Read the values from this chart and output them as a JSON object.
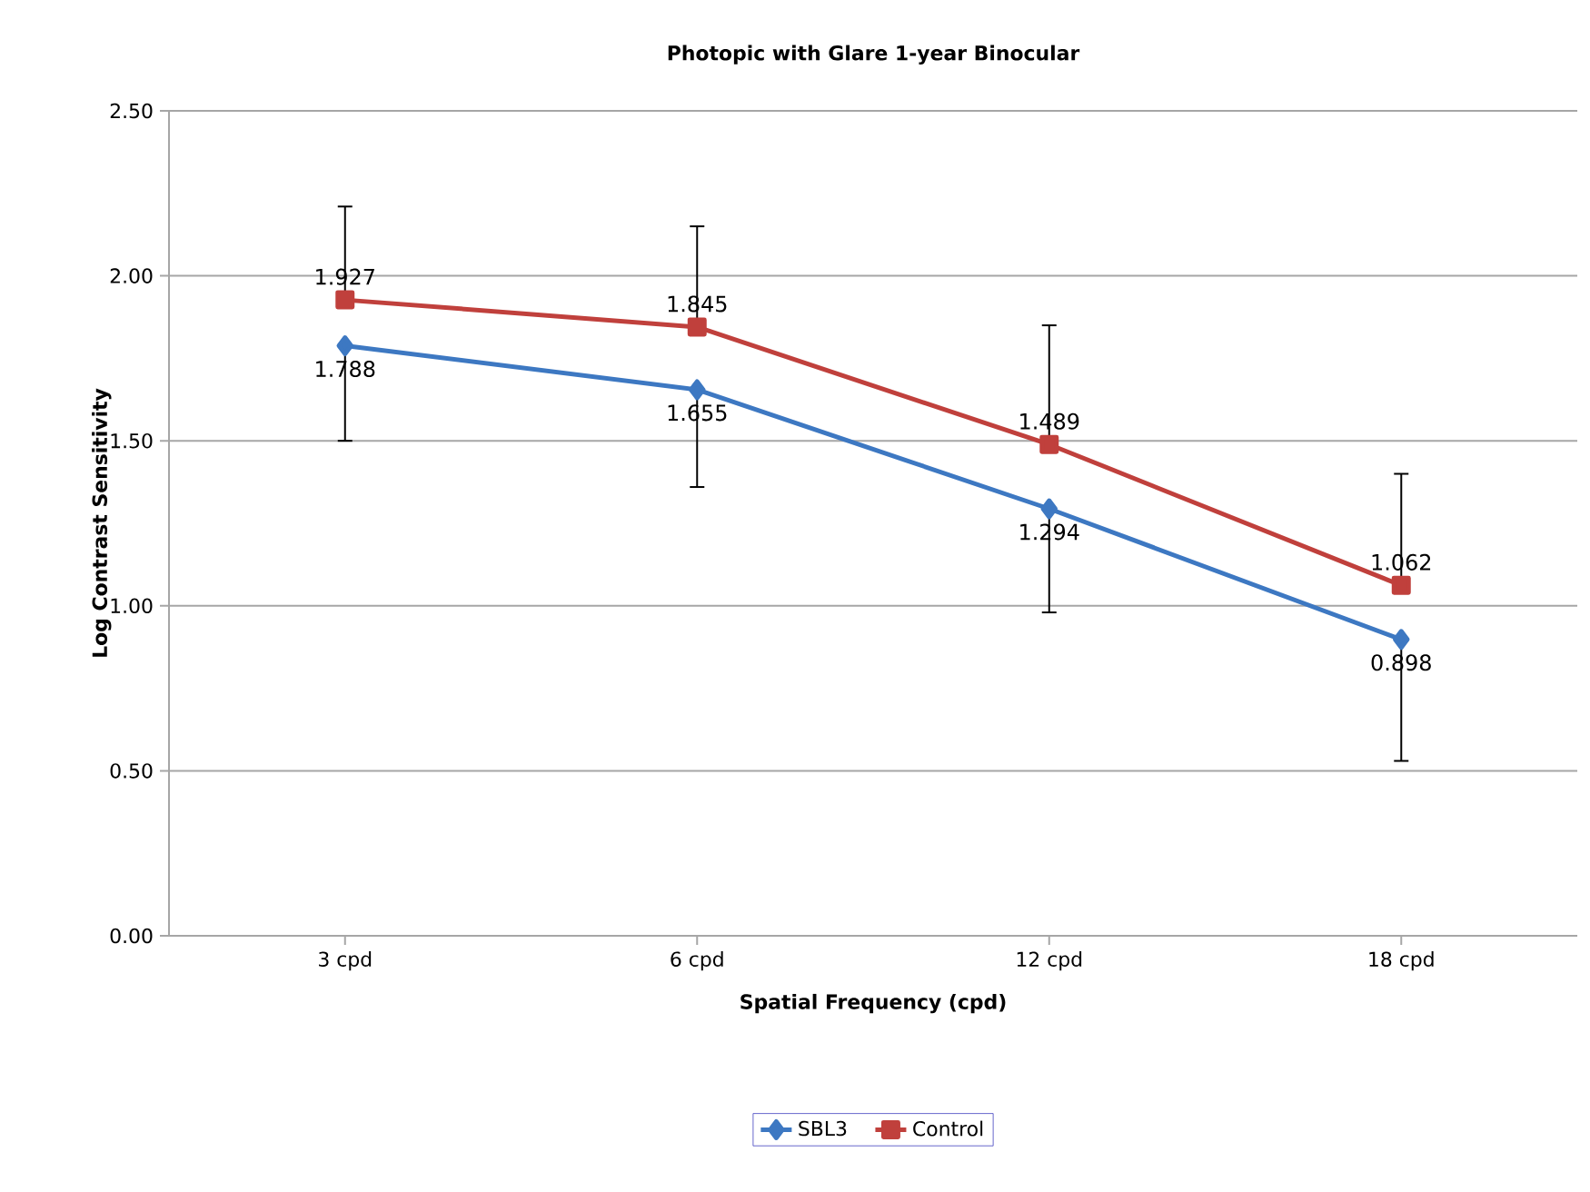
{
  "chart_data": {
    "type": "line",
    "title": "Photopic with Glare 1-year Binocular",
    "xlabel": "Spatial Frequency (cpd)",
    "ylabel": "Log Contrast Sensitivity",
    "categories": [
      "3 cpd",
      "6 cpd",
      "12 cpd",
      "18 cpd"
    ],
    "series": [
      {
        "name": "SBL3",
        "color": "#3d78c2",
        "marker": "diamond",
        "values": [
          1.788,
          1.655,
          1.294,
          0.898
        ],
        "errors": [
          [
            1.5,
            1.788
          ],
          [
            1.36,
            1.655
          ],
          [
            0.98,
            1.294
          ],
          [
            0.53,
            0.898
          ]
        ]
      },
      {
        "name": "Control",
        "color": "#c0403c",
        "marker": "square",
        "values": [
          1.927,
          1.845,
          1.489,
          1.062
        ],
        "errors": [
          [
            1.927,
            2.21
          ],
          [
            1.845,
            2.15
          ],
          [
            1.489,
            1.85
          ],
          [
            1.062,
            1.4
          ]
        ]
      }
    ],
    "ylim": [
      0,
      2.5
    ],
    "yticks": [
      {
        "value": 0,
        "label": "0.00"
      },
      {
        "value": 0.5,
        "label": "0.50"
      },
      {
        "value": 1,
        "label": "1.00"
      },
      {
        "value": 1.5,
        "label": "1.50"
      },
      {
        "value": 2,
        "label": "2.00"
      },
      {
        "value": 2.5,
        "label": "2.50"
      }
    ],
    "grid": "y",
    "legend": "bottom",
    "data_labels": true,
    "line_style": "solid"
  }
}
